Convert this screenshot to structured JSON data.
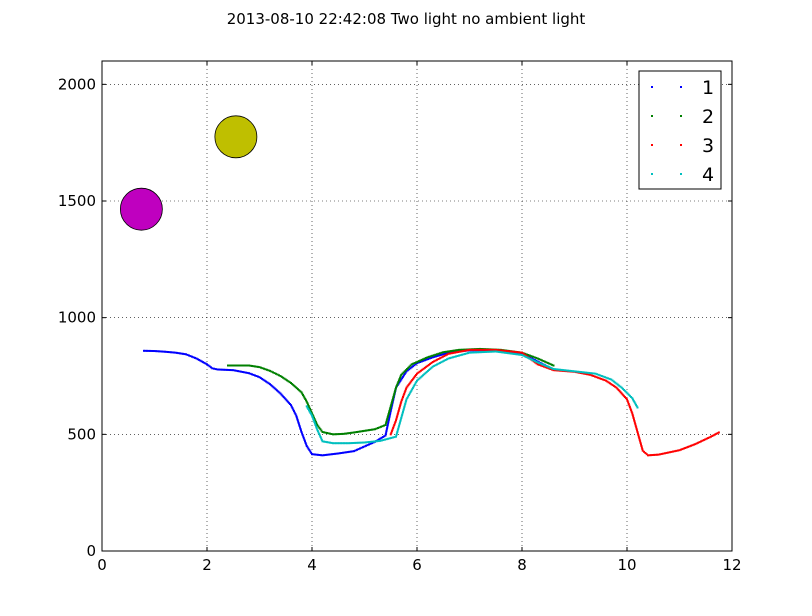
{
  "chart_data": {
    "type": "scatter",
    "title": "2013-08-10 22:42:08 Two light no ambient light",
    "xlabel": "",
    "ylabel": "",
    "xlim": [
      0,
      12
    ],
    "ylim": [
      0,
      2100
    ],
    "xticks": [
      0,
      2,
      4,
      6,
      8,
      10,
      12
    ],
    "yticks": [
      0,
      500,
      1000,
      1500,
      2000
    ],
    "xtick_labels": [
      "0",
      "2",
      "4",
      "6",
      "8",
      "10",
      "12"
    ],
    "ytick_labels": [
      "0",
      "500",
      "1000",
      "1500",
      "2000"
    ],
    "grid": true,
    "legend_position": "top-right",
    "markers": [
      {
        "x": 0.75,
        "y": 1465,
        "color": "#bf00bf"
      },
      {
        "x": 2.55,
        "y": 1775,
        "color": "#bfbf00"
      }
    ],
    "series": [
      {
        "name": "1",
        "color": "#0000ff",
        "points": [
          [
            0.8,
            858
          ],
          [
            1.0,
            857
          ],
          [
            1.2,
            854
          ],
          [
            1.4,
            850
          ],
          [
            1.6,
            843
          ],
          [
            1.8,
            825
          ],
          [
            2.0,
            800
          ],
          [
            2.1,
            783
          ],
          [
            2.2,
            778
          ],
          [
            2.5,
            775
          ],
          [
            2.8,
            762
          ],
          [
            3.0,
            745
          ],
          [
            3.2,
            715
          ],
          [
            3.4,
            675
          ],
          [
            3.6,
            625
          ],
          [
            3.7,
            580
          ],
          [
            3.8,
            510
          ],
          [
            3.9,
            450
          ],
          [
            4.0,
            415
          ],
          [
            4.2,
            410
          ],
          [
            4.5,
            418
          ],
          [
            4.8,
            428
          ],
          [
            5.0,
            448
          ],
          [
            5.2,
            468
          ],
          [
            5.4,
            495
          ],
          [
            5.5,
            600
          ],
          [
            5.6,
            700
          ],
          [
            5.8,
            770
          ],
          [
            6.0,
            805
          ],
          [
            6.3,
            830
          ],
          [
            6.6,
            850
          ],
          [
            7.0,
            860
          ],
          [
            7.5,
            860
          ],
          [
            8.0,
            848
          ],
          [
            8.3,
            812
          ],
          [
            8.6,
            778
          ]
        ]
      },
      {
        "name": "2",
        "color": "#008000",
        "points": [
          [
            2.4,
            795
          ],
          [
            2.8,
            795
          ],
          [
            3.0,
            788
          ],
          [
            3.2,
            772
          ],
          [
            3.4,
            750
          ],
          [
            3.6,
            720
          ],
          [
            3.8,
            680
          ],
          [
            3.9,
            640
          ],
          [
            4.0,
            590
          ],
          [
            4.1,
            540
          ],
          [
            4.2,
            510
          ],
          [
            4.4,
            500
          ],
          [
            4.6,
            502
          ],
          [
            4.8,
            508
          ],
          [
            5.0,
            515
          ],
          [
            5.2,
            522
          ],
          [
            5.4,
            540
          ],
          [
            5.5,
            620
          ],
          [
            5.6,
            700
          ],
          [
            5.7,
            755
          ],
          [
            5.9,
            800
          ],
          [
            6.2,
            830
          ],
          [
            6.5,
            852
          ],
          [
            6.8,
            862
          ],
          [
            7.2,
            866
          ],
          [
            7.6,
            862
          ],
          [
            8.0,
            850
          ],
          [
            8.3,
            825
          ],
          [
            8.6,
            795
          ]
        ]
      },
      {
        "name": "3",
        "color": "#ff0000",
        "points": [
          [
            5.5,
            500
          ],
          [
            5.6,
            560
          ],
          [
            5.7,
            640
          ],
          [
            5.8,
            700
          ],
          [
            6.0,
            760
          ],
          [
            6.3,
            810
          ],
          [
            6.6,
            845
          ],
          [
            7.0,
            862
          ],
          [
            7.5,
            862
          ],
          [
            8.0,
            850
          ],
          [
            8.3,
            800
          ],
          [
            8.6,
            775
          ],
          [
            9.0,
            768
          ],
          [
            9.3,
            755
          ],
          [
            9.6,
            730
          ],
          [
            9.8,
            700
          ],
          [
            10.0,
            650
          ],
          [
            10.1,
            590
          ],
          [
            10.2,
            510
          ],
          [
            10.3,
            430
          ],
          [
            10.4,
            410
          ],
          [
            10.6,
            413
          ],
          [
            11.0,
            432
          ],
          [
            11.3,
            458
          ],
          [
            11.6,
            490
          ],
          [
            11.75,
            508
          ]
        ]
      },
      {
        "name": "4",
        "color": "#00bfbf",
        "points": [
          [
            3.9,
            620
          ],
          [
            4.0,
            580
          ],
          [
            4.1,
            520
          ],
          [
            4.2,
            470
          ],
          [
            4.4,
            462
          ],
          [
            4.7,
            462
          ],
          [
            5.0,
            465
          ],
          [
            5.3,
            472
          ],
          [
            5.6,
            490
          ],
          [
            5.7,
            570
          ],
          [
            5.8,
            650
          ],
          [
            6.0,
            730
          ],
          [
            6.3,
            790
          ],
          [
            6.6,
            825
          ],
          [
            7.0,
            850
          ],
          [
            7.5,
            855
          ],
          [
            8.0,
            840
          ],
          [
            8.3,
            808
          ],
          [
            8.6,
            780
          ],
          [
            9.0,
            770
          ],
          [
            9.4,
            760
          ],
          [
            9.7,
            735
          ],
          [
            9.9,
            700
          ],
          [
            10.1,
            655
          ],
          [
            10.2,
            615
          ]
        ]
      }
    ]
  }
}
